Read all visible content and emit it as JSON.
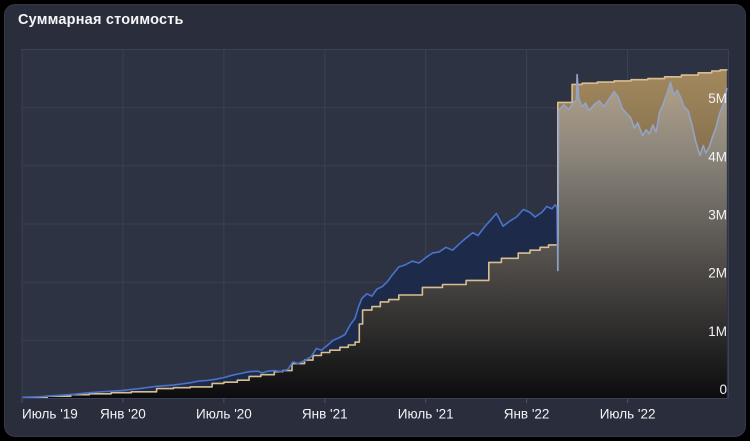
{
  "chart_data": {
    "type": "area",
    "title": "Суммарная стоимость",
    "xlim": [
      0,
      42
    ],
    "ylim": [
      0,
      6
    ],
    "x_unit": "months since first tick (half-year ticks)",
    "y_unit": "millions (M)",
    "grid": true,
    "legend": "none",
    "x_ticks": [
      {
        "m": 0,
        "label": "Июль '19"
      },
      {
        "m": 6,
        "label": "Янв '20"
      },
      {
        "m": 12,
        "label": "Июль '20"
      },
      {
        "m": 18,
        "label": "Янв '21"
      },
      {
        "m": 24,
        "label": "Июль '21"
      },
      {
        "m": 30,
        "label": "Янв '22"
      },
      {
        "m": 36,
        "label": "Июль '22"
      }
    ],
    "y_ticks": [
      {
        "v": 0,
        "label": "0"
      },
      {
        "v": 1,
        "label": "1M"
      },
      {
        "v": 2,
        "label": "2M"
      },
      {
        "v": 3,
        "label": "3M"
      },
      {
        "v": 4,
        "label": "4M"
      },
      {
        "v": 5,
        "label": "5M"
      }
    ],
    "colors": {
      "background": "#000000",
      "card": "#2a2e3c",
      "card_border": "#343949",
      "plot_bg": "#2e3343",
      "grid": "#3b4152",
      "tick": "#4b5164",
      "label": "#f2f3f6",
      "title": "#f5f6f8",
      "blue_line": "#4a73cb",
      "blue_line_after_gap": "#94a3c6",
      "blue_area": "#1e2a4a",
      "beige_line": "#d8bf90",
      "beige_area_top": "#a98e62",
      "beige_area_mid": "#6f5d40",
      "beige_area_bottom": "#19130a",
      "under_area_top": "#c0ae8f",
      "under_area_upper": "#8b857b",
      "under_area_lower": "#4e4b48",
      "under_area_bottom": "#0c0c0e"
    },
    "series": [
      {
        "name": "beige-step-series",
        "render": "step",
        "color_key": "beige_line",
        "points": [
          [
            0,
            0.02
          ],
          [
            1.5,
            0.04
          ],
          [
            2.9,
            0.065
          ],
          [
            4.0,
            0.08
          ],
          [
            5.3,
            0.1
          ],
          [
            6.5,
            0.115
          ],
          [
            8.0,
            0.17
          ],
          [
            9.0,
            0.185
          ],
          [
            10.0,
            0.2
          ],
          [
            11.3,
            0.26
          ],
          [
            12.0,
            0.28
          ],
          [
            12.8,
            0.315
          ],
          [
            13.5,
            0.38
          ],
          [
            14.2,
            0.41
          ],
          [
            15.0,
            0.46
          ],
          [
            15.5,
            0.48
          ],
          [
            16.05,
            0.6
          ],
          [
            16.8,
            0.66
          ],
          [
            17.3,
            0.74
          ],
          [
            17.8,
            0.79
          ],
          [
            18.3,
            0.83
          ],
          [
            18.9,
            0.88
          ],
          [
            19.4,
            0.92
          ],
          [
            19.8,
            0.97
          ],
          [
            20.05,
            1.28
          ],
          [
            20.25,
            1.52
          ],
          [
            20.8,
            1.58
          ],
          [
            21.3,
            1.66
          ],
          [
            21.8,
            1.7
          ],
          [
            22.4,
            1.78
          ],
          [
            23.8,
            1.91
          ],
          [
            25.0,
            1.96
          ],
          [
            26.4,
            2.03
          ],
          [
            27.75,
            2.34
          ],
          [
            28.5,
            2.41
          ],
          [
            29.5,
            2.5
          ],
          [
            30.2,
            2.55
          ],
          [
            30.8,
            2.6
          ],
          [
            31.3,
            2.64
          ],
          [
            31.85,
            5.09
          ],
          [
            32.7,
            5.4
          ],
          [
            33.3,
            5.42
          ],
          [
            34.2,
            5.44
          ],
          [
            35.2,
            5.46
          ],
          [
            36.2,
            5.48
          ],
          [
            37.2,
            5.5
          ],
          [
            38.2,
            5.53
          ],
          [
            39.2,
            5.56
          ],
          [
            40.2,
            5.6
          ],
          [
            41.0,
            5.63
          ],
          [
            41.5,
            5.65
          ],
          [
            41.9,
            5.66
          ]
        ]
      },
      {
        "name": "blue-line-series",
        "render": "line",
        "segments": [
          {
            "color_key": "blue_line",
            "points": [
              [
                0,
                0.02
              ],
              [
                1,
                0.03
              ],
              [
                2,
                0.05
              ],
              [
                3,
                0.07
              ],
              [
                4,
                0.1
              ],
              [
                5,
                0.12
              ],
              [
                6,
                0.14
              ],
              [
                7,
                0.17
              ],
              [
                8,
                0.21
              ],
              [
                9,
                0.23
              ],
              [
                10,
                0.27
              ],
              [
                10.5,
                0.3
              ],
              [
                11,
                0.31
              ],
              [
                11.5,
                0.33
              ],
              [
                12,
                0.36
              ],
              [
                12.5,
                0.4
              ],
              [
                13,
                0.43
              ],
              [
                13.5,
                0.46
              ],
              [
                14,
                0.47
              ],
              [
                14.3,
                0.44
              ],
              [
                14.6,
                0.47
              ],
              [
                15,
                0.48
              ],
              [
                15.4,
                0.46
              ],
              [
                15.8,
                0.5
              ],
              [
                16.1,
                0.63
              ],
              [
                16.4,
                0.6
              ],
              [
                16.8,
                0.65
              ],
              [
                17.2,
                0.72
              ],
              [
                17.5,
                0.86
              ],
              [
                17.8,
                0.83
              ],
              [
                18.1,
                0.9
              ],
              [
                18.5,
                1.0
              ],
              [
                18.9,
                1.05
              ],
              [
                19.2,
                1.1
              ],
              [
                19.5,
                1.26
              ],
              [
                19.8,
                1.38
              ],
              [
                20.0,
                1.57
              ],
              [
                20.2,
                1.72
              ],
              [
                20.5,
                1.8
              ],
              [
                20.8,
                1.76
              ],
              [
                21.1,
                1.88
              ],
              [
                21.4,
                1.92
              ],
              [
                21.7,
                2.0
              ],
              [
                22.0,
                2.12
              ],
              [
                22.4,
                2.26
              ],
              [
                22.8,
                2.3
              ],
              [
                23.2,
                2.36
              ],
              [
                23.6,
                2.33
              ],
              [
                24.0,
                2.42
              ],
              [
                24.4,
                2.5
              ],
              [
                24.8,
                2.52
              ],
              [
                25.2,
                2.6
              ],
              [
                25.6,
                2.55
              ],
              [
                26.0,
                2.66
              ],
              [
                26.4,
                2.76
              ],
              [
                26.8,
                2.85
              ],
              [
                27.1,
                2.8
              ],
              [
                27.5,
                2.95
              ],
              [
                27.9,
                3.08
              ],
              [
                28.2,
                3.18
              ],
              [
                28.6,
                2.96
              ],
              [
                29.0,
                3.05
              ],
              [
                29.4,
                3.12
              ],
              [
                29.8,
                3.25
              ],
              [
                30.2,
                3.2
              ],
              [
                30.5,
                3.12
              ],
              [
                30.9,
                3.2
              ],
              [
                31.2,
                3.3
              ],
              [
                31.5,
                3.26
              ],
              [
                31.7,
                3.33
              ],
              [
                31.8,
                3.28
              ],
              [
                31.85,
                2.2
              ]
            ]
          },
          {
            "color_key": "blue_line_after_gap",
            "points": [
              [
                31.85,
                2.2
              ],
              [
                31.9,
                4.95
              ],
              [
                32.2,
                5.05
              ],
              [
                32.5,
                4.97
              ],
              [
                32.8,
                5.1
              ],
              [
                32.95,
                5.12
              ],
              [
                33.0,
                5.57
              ],
              [
                33.1,
                5.15
              ],
              [
                33.3,
                5.02
              ],
              [
                33.5,
                5.08
              ],
              [
                33.7,
                4.95
              ],
              [
                34.0,
                5.05
              ],
              [
                34.3,
                5.12
              ],
              [
                34.6,
                5.02
              ],
              [
                34.9,
                5.15
              ],
              [
                35.2,
                5.28
              ],
              [
                35.45,
                5.18
              ],
              [
                35.7,
                4.98
              ],
              [
                35.95,
                4.9
              ],
              [
                36.2,
                4.82
              ],
              [
                36.4,
                4.65
              ],
              [
                36.6,
                4.74
              ],
              [
                36.9,
                4.52
              ],
              [
                37.1,
                4.62
              ],
              [
                37.3,
                4.55
              ],
              [
                37.5,
                4.7
              ],
              [
                37.7,
                4.58
              ],
              [
                37.9,
                4.92
              ],
              [
                38.1,
                5.05
              ],
              [
                38.35,
                5.25
              ],
              [
                38.55,
                5.44
              ],
              [
                38.75,
                5.22
              ],
              [
                38.95,
                5.3
              ],
              [
                39.15,
                5.18
              ],
              [
                39.35,
                5.02
              ],
              [
                39.6,
                4.95
              ],
              [
                39.85,
                4.68
              ],
              [
                40.05,
                4.42
              ],
              [
                40.3,
                4.18
              ],
              [
                40.5,
                4.35
              ],
              [
                40.65,
                4.22
              ],
              [
                40.85,
                4.32
              ],
              [
                41.05,
                4.5
              ],
              [
                41.25,
                4.65
              ],
              [
                41.45,
                4.88
              ],
              [
                41.6,
                5.0
              ],
              [
                41.75,
                5.1
              ],
              [
                41.9,
                5.33
              ]
            ]
          }
        ]
      }
    ]
  }
}
